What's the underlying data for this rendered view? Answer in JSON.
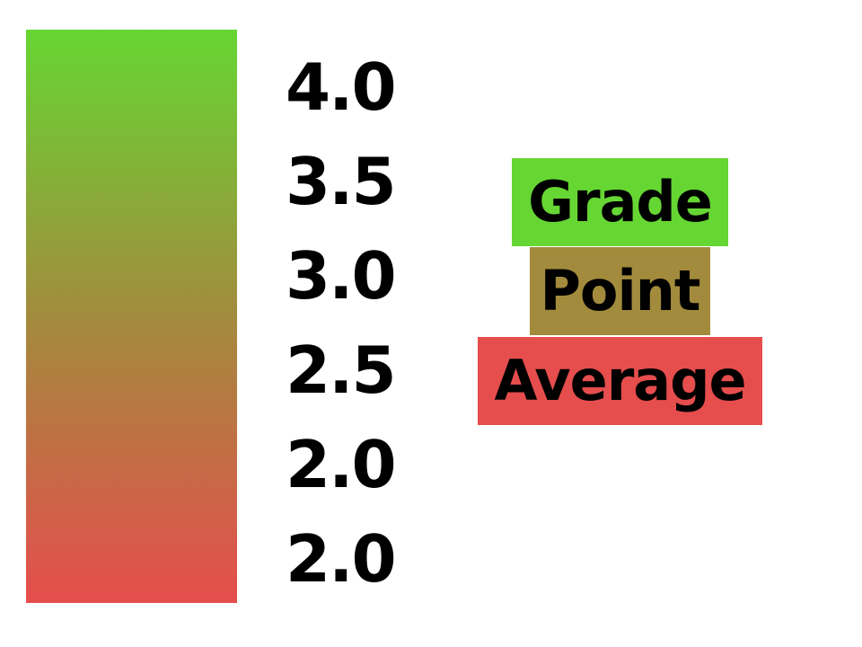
{
  "scale": {
    "labels": [
      "4.0",
      "3.5",
      "3.0",
      "2.5",
      "2.0",
      "2.0"
    ],
    "colors": {
      "top": "#66d633",
      "middle": "#a38b3d",
      "bottom": "#e64d4d"
    }
  },
  "title": {
    "words": [
      {
        "text": "Grade",
        "color": "#66d633"
      },
      {
        "text": "Point",
        "color": "#a38b3d"
      },
      {
        "text": "Average",
        "color": "#e64d4d"
      }
    ]
  }
}
